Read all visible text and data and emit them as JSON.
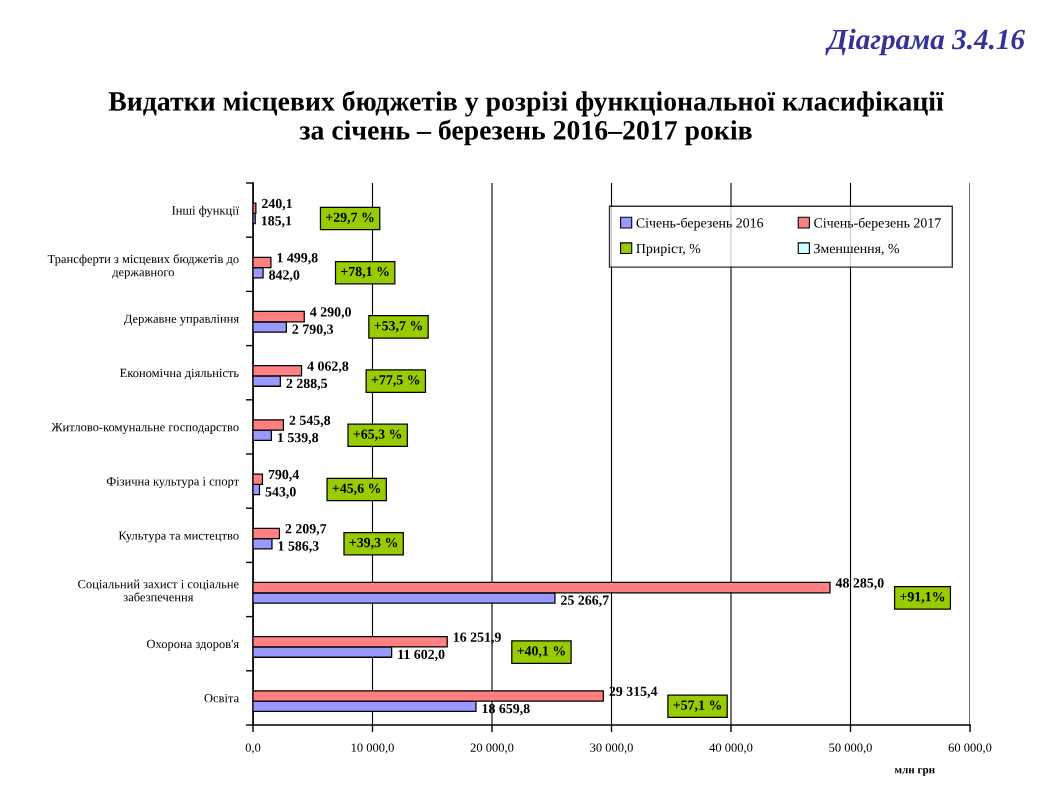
{
  "chart_data": {
    "type": "bar",
    "orientation": "horizontal",
    "title": "Видатки місцевих бюджетів у розрізі функціональної класифікації\nза січень – березень 2016–2017 років",
    "xlabel": "млн грн",
    "categories": [
      "Інші функції",
      "Трансферти з місцевих бюджетів до\nдержавного",
      "Державне управління",
      "Економічна діяльність",
      "Житлово-комунальне господарство",
      "Фізична культура і спорт",
      "Культура та мистецтво",
      "Соціальний захист і соціальне\nзабезпечення",
      "Охорона здоров'я",
      "Освіта"
    ],
    "series": [
      {
        "name": "Січень-березень 2016",
        "color": "#9999ff",
        "values": [
          185.1,
          842.0,
          2790.3,
          2288.5,
          1539.8,
          543.0,
          1586.3,
          25266.7,
          11602.0,
          18659.8
        ],
        "value_labels": [
          "185,1",
          "842,0",
          "2 790,3",
          "2 288,5",
          "1 539,8",
          "543,0",
          "1 586,3",
          "25 266,7",
          "11 602,0",
          "18 659,8"
        ]
      },
      {
        "name": "Січень-березень 2017",
        "color": "#ff8080",
        "values": [
          240.1,
          1499.8,
          4290.0,
          4062.8,
          2545.8,
          790.4,
          2209.7,
          48285.0,
          16251.9,
          29315.4
        ],
        "value_labels": [
          "240,1",
          "1 499,8",
          "4 290,0",
          "4 062,8",
          "2 545,8",
          "790,4",
          "2 209,7",
          "48 285,0",
          "16 251,9",
          "29 315,4"
        ]
      },
      {
        "name": "Приріст, %",
        "color": "#99cc00",
        "values": [
          null,
          null,
          null,
          null,
          null,
          null,
          null,
          null,
          null,
          null
        ]
      },
      {
        "name": "Зменшення, %",
        "color": "#ccffff",
        "values": [
          null,
          null,
          null,
          null,
          null,
          null,
          null,
          null,
          null,
          null
        ]
      }
    ],
    "xlim": [
      0,
      60000
    ],
    "xticks": [
      {
        "value": 0,
        "label": "0,0"
      },
      {
        "value": 10000,
        "label": "10 000,0"
      },
      {
        "value": 20000,
        "label": "20 000,0"
      },
      {
        "value": 30000,
        "label": "30 000,0"
      },
      {
        "value": 40000,
        "label": "40 000,0"
      },
      {
        "value": 50000,
        "label": "50 000,0"
      },
      {
        "value": 60000,
        "label": "60 000,0"
      }
    ],
    "grid": "x",
    "legend": "top right",
    "annotations": [
      "Діаграма 3.4.16",
      "+29,7 %",
      "+78,1 %",
      "+53,7 %",
      "+77,5 %",
      "+65,3 %",
      "+45,6 %",
      "+39,3 %",
      "+91,1%",
      "+40,1 %",
      "+57,1 %"
    ]
  }
}
